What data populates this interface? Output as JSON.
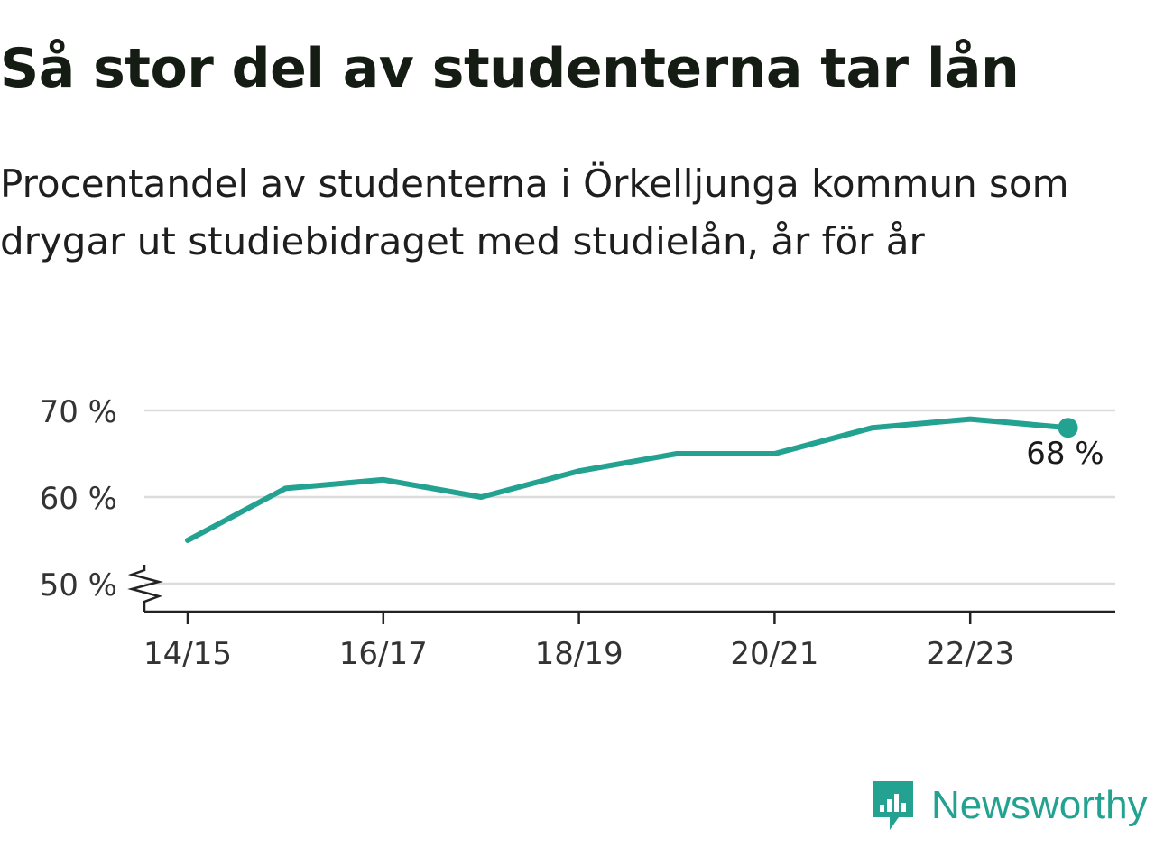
{
  "header": {
    "title": "Så stor del av studenterna tar lån",
    "subtitle": "Procentandel av studenterna i Örkelljunga kommun som drygar ut studiebidraget med studielån, år för år"
  },
  "brand": {
    "name": "Newsworthy",
    "color": "#24a291"
  },
  "chart_data": {
    "type": "line",
    "x": [
      "14/15",
      "15/16",
      "16/17",
      "17/18",
      "18/19",
      "19/20",
      "20/21",
      "21/22",
      "22/23",
      "23/24"
    ],
    "series": [
      {
        "values": [
          55,
          61,
          62,
          60,
          63,
          65,
          65,
          68,
          69,
          68
        ],
        "color": "#24a291"
      }
    ],
    "x_tick_labels": [
      "14/15",
      "16/17",
      "18/19",
      "20/21",
      "22/23"
    ],
    "y_ticks": [
      50,
      60,
      70
    ],
    "y_tick_labels": [
      "50 %",
      "60 %",
      "70 %"
    ],
    "ylim": [
      50,
      70
    ],
    "y_axis_break": true,
    "grid": true,
    "end_label": "68 %"
  }
}
